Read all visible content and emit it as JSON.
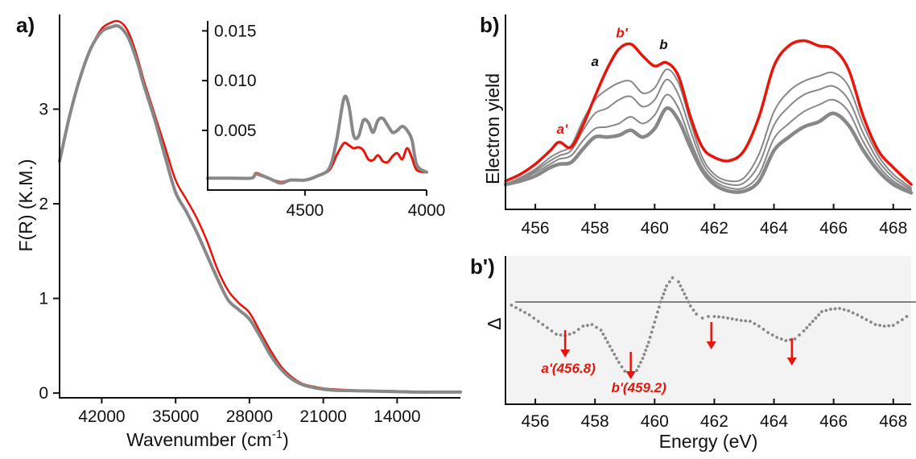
{
  "colors": {
    "red": "#e8150b",
    "gray": "#888888",
    "shade": "#f3f3f3",
    "axis": "#111111"
  },
  "panel_labels": {
    "a": "a)",
    "b": "b)",
    "bp": "b')"
  },
  "chart_data": [
    {
      "id": "a",
      "type": "line",
      "xlabel": "Wavenumber (cm",
      "xlabel_sup": "-1",
      "xlabel_close": ")",
      "ylabel": "F(R) (K.M.)",
      "xlim": [
        46000,
        8000
      ],
      "ylim": [
        -0.05,
        4.0
      ],
      "xticks": [
        42000,
        35000,
        28000,
        21000,
        14000
      ],
      "xtick_labels": [
        "42000",
        "35000",
        "28000",
        "21000",
        "14000"
      ],
      "yticks": [
        0,
        1,
        2,
        3
      ],
      "ytick_labels": [
        "0",
        "1",
        "2",
        "3"
      ],
      "series": [
        {
          "color": "#e8150b",
          "width": 2.5,
          "x": [
            46000,
            45000,
            44000,
            43000,
            42000,
            41000,
            40500,
            40000,
            39500,
            39000,
            38500,
            38000,
            37000,
            36000,
            35000,
            34000,
            33000,
            32000,
            31000,
            30000,
            29000,
            28000,
            27000,
            26000,
            25000,
            24000,
            23000,
            22000,
            21000,
            20000,
            18000,
            16000,
            14000,
            12000,
            10000,
            8000
          ],
          "y": [
            2.45,
            2.95,
            3.35,
            3.65,
            3.85,
            3.92,
            3.93,
            3.9,
            3.82,
            3.68,
            3.5,
            3.3,
            2.95,
            2.6,
            2.25,
            2.05,
            1.85,
            1.6,
            1.3,
            1.08,
            0.95,
            0.85,
            0.65,
            0.45,
            0.28,
            0.17,
            0.1,
            0.07,
            0.05,
            0.04,
            0.03,
            0.025,
            0.02,
            0.015,
            0.01,
            0.01
          ]
        },
        {
          "color": "#888888",
          "width": 4,
          "x": [
            46000,
            45000,
            44000,
            43000,
            42000,
            41000,
            40500,
            40000,
            39500,
            39000,
            38500,
            38000,
            37000,
            36000,
            35000,
            34000,
            33000,
            32000,
            31000,
            30000,
            29000,
            28000,
            27000,
            26000,
            25000,
            24000,
            23000,
            22000,
            21000,
            20000,
            18000,
            16000,
            14000,
            12000,
            10000,
            8000
          ],
          "y": [
            2.45,
            2.95,
            3.35,
            3.65,
            3.82,
            3.87,
            3.88,
            3.84,
            3.76,
            3.62,
            3.45,
            3.25,
            2.9,
            2.5,
            2.12,
            1.92,
            1.7,
            1.45,
            1.2,
            0.98,
            0.88,
            0.78,
            0.6,
            0.4,
            0.25,
            0.15,
            0.09,
            0.06,
            0.04,
            0.03,
            0.025,
            0.02,
            0.015,
            0.01,
            0.01,
            0.01
          ]
        }
      ]
    },
    {
      "id": "a-inset",
      "type": "line",
      "xlim": [
        4900,
        4000
      ],
      "ylim": [
        -0.001,
        0.016
      ],
      "xticks": [
        4500,
        4000
      ],
      "xtick_labels": [
        "4500",
        "4000"
      ],
      "yticks": [
        0.005,
        0.01,
        0.015
      ],
      "ytick_labels": [
        "0.005",
        "0.010",
        "0.015"
      ],
      "series": [
        {
          "color": "#e8150b",
          "width": 3,
          "x": [
            4900,
            4800,
            4720,
            4700,
            4650,
            4600,
            4560,
            4500,
            4450,
            4400,
            4370,
            4340,
            4320,
            4300,
            4280,
            4260,
            4240,
            4220,
            4200,
            4180,
            4160,
            4140,
            4120,
            4100,
            4080,
            4060,
            4040,
            4000
          ],
          "y": [
            0.0002,
            0.0002,
            0.0002,
            0.0007,
            0.0002,
            -0.0002,
            0.0,
            0.0,
            0.0004,
            0.001,
            0.0025,
            0.0037,
            0.0035,
            0.0032,
            0.0033,
            0.003,
            0.0021,
            0.002,
            0.0025,
            0.0019,
            0.0018,
            0.0024,
            0.0027,
            0.0021,
            0.0032,
            0.0022,
            0.001,
            0.0008
          ]
        },
        {
          "color": "#888888",
          "width": 4,
          "x": [
            4900,
            4800,
            4720,
            4700,
            4650,
            4600,
            4560,
            4500,
            4450,
            4400,
            4370,
            4340,
            4320,
            4300,
            4280,
            4260,
            4240,
            4220,
            4200,
            4180,
            4160,
            4140,
            4120,
            4100,
            4080,
            4060,
            4040,
            4000
          ],
          "y": [
            0.0002,
            0.0002,
            0.0002,
            0.0006,
            0.0002,
            -0.0003,
            0.0,
            0.0,
            0.0004,
            0.0012,
            0.004,
            0.0082,
            0.0075,
            0.0045,
            0.0044,
            0.006,
            0.0058,
            0.0048,
            0.006,
            0.0062,
            0.0055,
            0.0048,
            0.005,
            0.0054,
            0.005,
            0.004,
            0.0015,
            0.0008
          ]
        }
      ]
    },
    {
      "id": "b",
      "type": "line",
      "xlabel": "",
      "ylabel": "Electron yield",
      "xlim": [
        455,
        468.6
      ],
      "ylim": [
        0,
        1.0
      ],
      "xticks": [
        456,
        458,
        460,
        462,
        464,
        466,
        468
      ],
      "xtick_labels": [
        "456",
        "458",
        "460",
        "462",
        "464",
        "466",
        "468"
      ],
      "annotations": [
        {
          "text": "a'",
          "x": 456.9,
          "y": 0.4,
          "color": "red"
        },
        {
          "text": "b'",
          "x": 458.9,
          "y": 0.97,
          "color": "red"
        },
        {
          "text": "a",
          "x": 458.0,
          "y": 0.8,
          "color": "black"
        },
        {
          "text": "b",
          "x": 460.3,
          "y": 0.9,
          "color": "black"
        }
      ],
      "series": [
        {
          "color": "#888888",
          "width": 4.5,
          "x": [
            455,
            455.5,
            456,
            456.5,
            456.8,
            457.2,
            457.6,
            458.0,
            458.4,
            458.8,
            459.2,
            459.6,
            460.0,
            460.4,
            460.8,
            461.2,
            461.6,
            462,
            462.5,
            463,
            463.5,
            464,
            464.5,
            465,
            465.5,
            466,
            466.5,
            467,
            467.5,
            468,
            468.6
          ],
          "y": [
            0.1,
            0.12,
            0.15,
            0.2,
            0.22,
            0.23,
            0.31,
            0.38,
            0.38,
            0.39,
            0.42,
            0.38,
            0.43,
            0.55,
            0.48,
            0.32,
            0.18,
            0.1,
            0.06,
            0.06,
            0.12,
            0.3,
            0.38,
            0.44,
            0.47,
            0.52,
            0.45,
            0.3,
            0.18,
            0.1,
            0.05
          ]
        },
        {
          "color": "#888888",
          "width": 2,
          "x": [
            455,
            455.5,
            456,
            456.5,
            456.8,
            457.2,
            457.6,
            458.0,
            458.4,
            458.8,
            459.2,
            459.6,
            460.0,
            460.4,
            460.8,
            461.2,
            461.6,
            462,
            462.5,
            463,
            463.5,
            464,
            464.5,
            465,
            465.5,
            466,
            466.5,
            467,
            467.5,
            468,
            468.6
          ],
          "y": [
            0.1,
            0.13,
            0.17,
            0.22,
            0.25,
            0.27,
            0.36,
            0.43,
            0.44,
            0.46,
            0.5,
            0.46,
            0.51,
            0.63,
            0.55,
            0.36,
            0.2,
            0.12,
            0.08,
            0.08,
            0.16,
            0.37,
            0.46,
            0.53,
            0.57,
            0.6,
            0.53,
            0.35,
            0.21,
            0.12,
            0.06
          ]
        },
        {
          "color": "#888888",
          "width": 2,
          "x": [
            455,
            455.5,
            456,
            456.5,
            456.8,
            457.2,
            457.6,
            458.0,
            458.4,
            458.8,
            459.2,
            459.6,
            460.0,
            460.4,
            460.8,
            461.2,
            461.6,
            462,
            462.5,
            463,
            463.5,
            464,
            464.5,
            465,
            465.5,
            466,
            466.5,
            467,
            467.5,
            468,
            468.6
          ],
          "y": [
            0.1,
            0.13,
            0.18,
            0.24,
            0.27,
            0.3,
            0.42,
            0.52,
            0.55,
            0.6,
            0.62,
            0.56,
            0.6,
            0.72,
            0.63,
            0.42,
            0.23,
            0.14,
            0.1,
            0.11,
            0.22,
            0.45,
            0.56,
            0.63,
            0.66,
            0.68,
            0.6,
            0.4,
            0.24,
            0.14,
            0.07
          ]
        },
        {
          "color": "#888888",
          "width": 2,
          "x": [
            455,
            455.5,
            456,
            456.5,
            456.8,
            457.2,
            457.6,
            458.0,
            458.4,
            458.8,
            459.2,
            459.6,
            460.0,
            460.4,
            460.8,
            461.2,
            461.6,
            462,
            462.5,
            463,
            463.5,
            464,
            464.5,
            465,
            465.5,
            466,
            466.5,
            467,
            467.5,
            468,
            468.6
          ],
          "y": [
            0.1,
            0.14,
            0.19,
            0.26,
            0.29,
            0.33,
            0.48,
            0.6,
            0.66,
            0.7,
            0.71,
            0.64,
            0.67,
            0.78,
            0.7,
            0.47,
            0.26,
            0.16,
            0.12,
            0.14,
            0.28,
            0.53,
            0.65,
            0.71,
            0.74,
            0.76,
            0.68,
            0.45,
            0.27,
            0.16,
            0.08
          ]
        },
        {
          "color": "#e8150b",
          "width": 3.5,
          "x": [
            455,
            455.5,
            456,
            456.5,
            456.8,
            457.2,
            457.6,
            458.0,
            458.4,
            458.8,
            459.2,
            459.6,
            460.0,
            460.4,
            460.8,
            461.2,
            461.6,
            462,
            462.5,
            463,
            463.5,
            464,
            464.5,
            465,
            465.5,
            466,
            466.5,
            467,
            467.5,
            468,
            468.6
          ],
          "y": [
            0.12,
            0.16,
            0.22,
            0.3,
            0.35,
            0.32,
            0.45,
            0.62,
            0.78,
            0.9,
            0.93,
            0.86,
            0.8,
            0.82,
            0.74,
            0.5,
            0.32,
            0.26,
            0.24,
            0.3,
            0.5,
            0.8,
            0.92,
            0.95,
            0.92,
            0.9,
            0.78,
            0.5,
            0.3,
            0.2,
            0.1
          ]
        }
      ]
    },
    {
      "id": "bp",
      "type": "scatter",
      "xlabel": "Energy (eV)",
      "ylabel": "Δ",
      "xlim": [
        455,
        468.6
      ],
      "ylim": [
        -1.0,
        0.45
      ],
      "zero_line": 0.0,
      "xticks": [
        456,
        458,
        460,
        462,
        464,
        466,
        468
      ],
      "xtick_labels": [
        "456",
        "458",
        "460",
        "462",
        "464",
        "466",
        "468"
      ],
      "arrows": [
        {
          "x": 457.0,
          "label": "a'(456.8)"
        },
        {
          "x": 459.2,
          "label": "b'(459.2)"
        },
        {
          "x": 461.9,
          "label": ""
        },
        {
          "x": 464.6,
          "label": ""
        }
      ],
      "series": [
        {
          "color": "#888888",
          "x": [
            455.2,
            455.5,
            455.8,
            456.1,
            456.4,
            456.7,
            457.0,
            457.3,
            457.6,
            457.9,
            458.2,
            458.5,
            458.8,
            459.0,
            459.2,
            459.4,
            459.6,
            459.8,
            460.0,
            460.2,
            460.4,
            460.6,
            460.8,
            461.0,
            461.2,
            461.4,
            461.6,
            461.8,
            462.0,
            462.3,
            462.6,
            462.9,
            463.2,
            463.5,
            463.8,
            464.1,
            464.4,
            464.7,
            465.0,
            465.3,
            465.6,
            465.9,
            466.2,
            466.5,
            466.8,
            467.1,
            467.4,
            467.7,
            468.0,
            468.3,
            468.6
          ],
          "y": [
            -0.04,
            -0.1,
            -0.16,
            -0.24,
            -0.32,
            -0.4,
            -0.42,
            -0.38,
            -0.3,
            -0.28,
            -0.35,
            -0.55,
            -0.75,
            -0.86,
            -0.9,
            -0.85,
            -0.7,
            -0.5,
            -0.25,
            0.0,
            0.2,
            0.3,
            0.25,
            0.1,
            -0.05,
            -0.15,
            -0.2,
            -0.18,
            -0.18,
            -0.19,
            -0.21,
            -0.23,
            -0.24,
            -0.3,
            -0.38,
            -0.44,
            -0.48,
            -0.46,
            -0.36,
            -0.24,
            -0.12,
            -0.09,
            -0.08,
            -0.11,
            -0.16,
            -0.22,
            -0.28,
            -0.3,
            -0.29,
            -0.22,
            -0.14
          ]
        }
      ]
    }
  ]
}
